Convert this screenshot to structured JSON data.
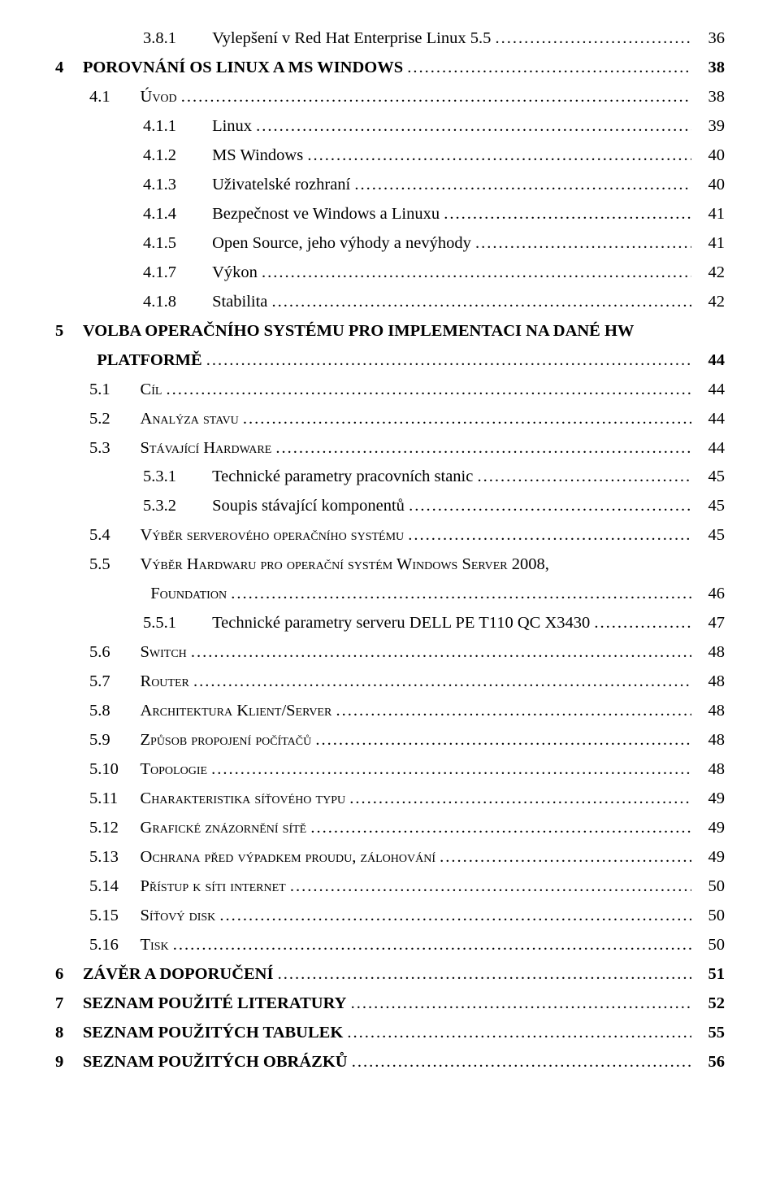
{
  "toc": [
    {
      "indent": "ind4",
      "numClass": "num-w3",
      "num": "3.8.1",
      "label": "Vylepšení v Red Hat Enterprise Linux 5.5",
      "page": "36",
      "style": ""
    },
    {
      "indent": "ind1",
      "numClass": "num-w1",
      "num": "4",
      "label": "POROVNÁNÍ OS LINUX A MS WINDOWS",
      "page": "38",
      "style": "bold"
    },
    {
      "indent": "ind2",
      "numClass": "num-w2",
      "num": "4.1",
      "label": "Úvod",
      "page": "38",
      "style": "sc"
    },
    {
      "indent": "ind4",
      "numClass": "num-w3",
      "num": "4.1.1",
      "label": "Linux",
      "page": "39",
      "style": ""
    },
    {
      "indent": "ind4",
      "numClass": "num-w3",
      "num": "4.1.2",
      "label": "MS Windows",
      "page": "40",
      "style": ""
    },
    {
      "indent": "ind4",
      "numClass": "num-w3",
      "num": "4.1.3",
      "label": "Uživatelské rozhraní",
      "page": "40",
      "style": ""
    },
    {
      "indent": "ind4",
      "numClass": "num-w3",
      "num": "4.1.4",
      "label": "Bezpečnost ve Windows a Linuxu",
      "page": "41",
      "style": ""
    },
    {
      "indent": "ind4",
      "numClass": "num-w3",
      "num": "4.1.5",
      "label": "Open Source, jeho výhody a nevýhody",
      "page": "41",
      "style": ""
    },
    {
      "indent": "ind4",
      "numClass": "num-w3",
      "num": "4.1.7",
      "label": "Výkon",
      "page": "42",
      "style": ""
    },
    {
      "indent": "ind4",
      "numClass": "num-w3",
      "num": "4.1.8",
      "label": "Stabilita",
      "page": "42",
      "style": ""
    },
    {
      "indent": "ind1",
      "numClass": "num-w1",
      "num": "5",
      "label": "VOLBA OPERAČNÍHO SYSTÉMU PRO IMPLEMENTACI NA DANÉ HW",
      "page": "",
      "style": "bold",
      "noLeader": true
    },
    {
      "indent": "ind3b",
      "numClass": "",
      "num": "",
      "label": "PLATFORMĚ",
      "page": "44",
      "style": "bold"
    },
    {
      "indent": "ind2",
      "numClass": "num-w2",
      "num": "5.1",
      "label": "Cíl",
      "page": "44",
      "style": "sc"
    },
    {
      "indent": "ind2",
      "numClass": "num-w2",
      "num": "5.2",
      "label": "Analýza stavu",
      "page": "44",
      "style": "sc"
    },
    {
      "indent": "ind2",
      "numClass": "num-w2",
      "num": "5.3",
      "label": "Stávající Hardware",
      "page": "44",
      "style": "sc"
    },
    {
      "indent": "ind4",
      "numClass": "num-w3",
      "num": "5.3.1",
      "label": "Technické parametry pracovních stanic",
      "page": "45",
      "style": ""
    },
    {
      "indent": "ind4",
      "numClass": "num-w3",
      "num": "5.3.2",
      "label": "Soupis stávající komponentů",
      "page": "45",
      "style": ""
    },
    {
      "indent": "ind2",
      "numClass": "num-w2",
      "num": "5.4",
      "label": "Výběr serverového operačního systému",
      "page": "45",
      "style": "sc"
    },
    {
      "indent": "ind2",
      "numClass": "num-w2",
      "num": "5.5",
      "label": "Výběr Hardwaru pro operační systém Windows Server 2008,",
      "page": "",
      "style": "sc",
      "noLeader": true
    },
    {
      "indent": "ind4",
      "numClass": "",
      "num": "",
      "label": "Foundation",
      "page": "46",
      "style": "sc"
    },
    {
      "indent": "ind4",
      "numClass": "num-w3",
      "num": "5.5.1",
      "label": "Technické parametry serveru DELL PE T110 QC X3430",
      "page": "47",
      "style": ""
    },
    {
      "indent": "ind2",
      "numClass": "num-w2",
      "num": "5.6",
      "label": "Switch",
      "page": "48",
      "style": "sc"
    },
    {
      "indent": "ind2",
      "numClass": "num-w2",
      "num": "5.7",
      "label": "Router",
      "page": "48",
      "style": "sc"
    },
    {
      "indent": "ind2",
      "numClass": "num-w2",
      "num": "5.8",
      "label": "Architektura Klient/Server",
      "page": "48",
      "style": "sc"
    },
    {
      "indent": "ind2",
      "numClass": "num-w2",
      "num": "5.9",
      "label": "Způsob propojení počítačů",
      "page": "48",
      "style": "sc"
    },
    {
      "indent": "ind2",
      "numClass": "num-w2",
      "num": "5.10",
      "label": "Topologie",
      "page": "48",
      "style": "sc"
    },
    {
      "indent": "ind2",
      "numClass": "num-w2",
      "num": "5.11",
      "label": "Charakteristika síťového typu",
      "page": "49",
      "style": "sc"
    },
    {
      "indent": "ind2",
      "numClass": "num-w2",
      "num": "5.12",
      "label": "Grafické znázornění sítě",
      "page": "49",
      "style": "sc"
    },
    {
      "indent": "ind2",
      "numClass": "num-w2",
      "num": "5.13",
      "label": "Ochrana před výpadkem proudu, zálohování",
      "page": "49",
      "style": "sc"
    },
    {
      "indent": "ind2",
      "numClass": "num-w2",
      "num": "5.14",
      "label": "Přístup k síti internet",
      "page": "50",
      "style": "sc"
    },
    {
      "indent": "ind2",
      "numClass": "num-w2",
      "num": "5.15",
      "label": "Síťový disk",
      "page": "50",
      "style": "sc"
    },
    {
      "indent": "ind2",
      "numClass": "num-w2",
      "num": "5.16",
      "label": "Tisk",
      "page": "50",
      "style": "sc"
    },
    {
      "indent": "ind1",
      "numClass": "num-w1",
      "num": "6",
      "label": "ZÁVĚR A DOPORUČENÍ",
      "page": "51",
      "style": "bold"
    },
    {
      "indent": "ind1",
      "numClass": "num-w1",
      "num": "7",
      "label": "SEZNAM POUŽITÉ LITERATURY",
      "page": "52",
      "style": "bold"
    },
    {
      "indent": "ind1",
      "numClass": "num-w1",
      "num": "8",
      "label": "SEZNAM POUŽITÝCH TABULEK",
      "page": "55",
      "style": "bold"
    },
    {
      "indent": "ind1",
      "numClass": "num-w1",
      "num": "9",
      "label": "SEZNAM POUŽITÝCH OBRÁZKŮ",
      "page": "56",
      "style": "bold"
    }
  ]
}
